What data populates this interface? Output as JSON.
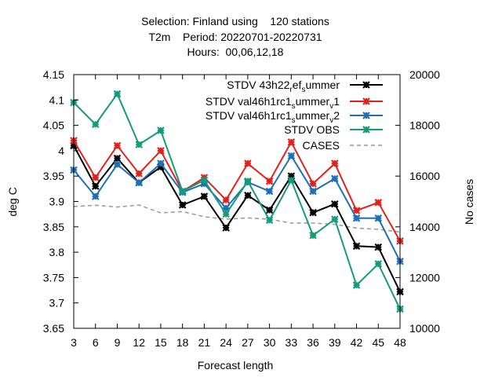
{
  "chart_data": {
    "type": "line",
    "title_lines": [
      "Selection: Finland using    120 stations",
      "T2m    Period: 20220701-20220731",
      "Hours:  00,06,12,18"
    ],
    "xlabel": "Forecast length",
    "ylabel": "deg C",
    "y2label": "No cases",
    "x": [
      3,
      6,
      9,
      12,
      15,
      18,
      21,
      24,
      27,
      30,
      33,
      36,
      39,
      42,
      45,
      48
    ],
    "xlim": [
      3,
      48
    ],
    "ylim": [
      3.65,
      4.15
    ],
    "y2lim": [
      10000,
      20000
    ],
    "yticks": [
      "3.65",
      "3.7",
      "3.75",
      "3.8",
      "3.85",
      "3.9",
      "3.95",
      "4",
      "4.05",
      "4.1",
      "4.15"
    ],
    "y2ticks": [
      "10000",
      "12000",
      "14000",
      "16000",
      "18000",
      "20000"
    ],
    "legend_position": "top-right",
    "series": [
      {
        "name": "STDV 43h22",
        "name_sub1": "r",
        "name_mid": "ef",
        "name_sub2": "s",
        "name_tail": "ummer",
        "color": "#000000",
        "axis": "y",
        "values": [
          4.01,
          3.93,
          3.985,
          3.937,
          3.968,
          3.893,
          3.91,
          3.848,
          3.912,
          3.883,
          3.95,
          3.878,
          3.895,
          3.812,
          3.81,
          3.722
        ]
      },
      {
        "name": "STDV val46h1rc1",
        "name_sub1": "s",
        "name_mid": "ummer",
        "name_sub2": "v",
        "name_tail": "1",
        "color": "#e3211c",
        "axis": "y",
        "values": [
          4.02,
          3.947,
          4.01,
          3.955,
          4.0,
          3.92,
          3.947,
          3.903,
          3.975,
          3.94,
          4.017,
          3.935,
          3.975,
          3.882,
          3.898,
          3.822
        ]
      },
      {
        "name": "STDV val46h1rc1",
        "name_sub1": "s",
        "name_mid": "ummer",
        "name_sub2": "v",
        "name_tail": "2",
        "color": "#1f6fb4",
        "axis": "y",
        "values": [
          3.962,
          3.91,
          3.973,
          3.937,
          3.975,
          3.918,
          3.935,
          3.887,
          3.938,
          3.92,
          3.99,
          3.92,
          3.945,
          3.867,
          3.867,
          3.782
        ]
      },
      {
        "name": "STDV OBS",
        "color": "#159a7a",
        "axis": "y",
        "values": [
          4.095,
          4.052,
          4.112,
          4.012,
          4.04,
          3.92,
          3.942,
          3.875,
          3.94,
          3.863,
          3.942,
          3.833,
          3.865,
          3.735,
          3.777,
          3.688
        ]
      },
      {
        "name": "CASES",
        "color": "#999999",
        "axis": "y2",
        "dashed": true,
        "values": [
          14800,
          14850,
          14780,
          14860,
          14550,
          14600,
          14400,
          14300,
          14350,
          14300,
          14150,
          14150,
          14100,
          13950,
          13900,
          13800
        ]
      }
    ]
  }
}
